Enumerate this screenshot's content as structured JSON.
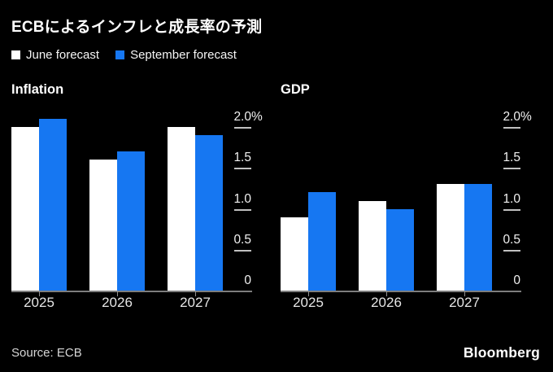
{
  "title": "ECBによるインフレと成長率の予測",
  "legend": {
    "items": [
      {
        "key": "june",
        "label": "June forecast",
        "color": "#ffffff"
      },
      {
        "key": "september",
        "label": "September forecast",
        "color": "#1677f2"
      }
    ]
  },
  "source": "Source: ECB",
  "brand": "Bloomberg",
  "colors": {
    "background": "#000000",
    "june_bar": "#ffffff",
    "september_bar": "#1677f2",
    "baseline": "#7d7d7d",
    "tick_line": "#c0c0c0",
    "axis_text": "#f1f1f1"
  },
  "chart_data": [
    {
      "type": "bar",
      "id": "inflation",
      "title": "Inflation",
      "unit": "%",
      "categories": [
        "2025",
        "2026",
        "2027"
      ],
      "series": [
        {
          "key": "june",
          "name": "June forecast",
          "color": "#ffffff",
          "values": [
            2.0,
            1.6,
            2.0
          ]
        },
        {
          "key": "september",
          "name": "September forecast",
          "color": "#1677f2",
          "values": [
            2.1,
            1.7,
            1.9
          ]
        }
      ],
      "ylim": [
        0,
        2.25
      ],
      "grid": false,
      "legend_position": "top-shared",
      "y_axis": {
        "max": 2.25,
        "side": "right",
        "ticks": [
          {
            "value": 2.0,
            "label": "2.0",
            "suffix": "%"
          },
          {
            "value": 1.5,
            "label": "1.5",
            "suffix": ""
          },
          {
            "value": 1.0,
            "label": "1.0",
            "suffix": ""
          },
          {
            "value": 0.5,
            "label": "0.5",
            "suffix": ""
          },
          {
            "value": 0,
            "label": "0",
            "suffix": ""
          }
        ]
      }
    },
    {
      "type": "bar",
      "id": "gdp",
      "title": "GDP",
      "unit": "%",
      "categories": [
        "2025",
        "2026",
        "2027"
      ],
      "series": [
        {
          "key": "june",
          "name": "June forecast",
          "color": "#ffffff",
          "values": [
            0.9,
            1.1,
            1.3
          ]
        },
        {
          "key": "september",
          "name": "September forecast",
          "color": "#1677f2",
          "values": [
            1.2,
            1.0,
            1.3
          ]
        }
      ],
      "ylim": [
        0,
        2.25
      ],
      "grid": false,
      "legend_position": "top-shared",
      "y_axis": {
        "max": 2.25,
        "side": "right",
        "ticks": [
          {
            "value": 2.0,
            "label": "2.0",
            "suffix": "%"
          },
          {
            "value": 1.5,
            "label": "1.5",
            "suffix": ""
          },
          {
            "value": 1.0,
            "label": "1.0",
            "suffix": ""
          },
          {
            "value": 0.5,
            "label": "0.5",
            "suffix": ""
          },
          {
            "value": 0,
            "label": "0",
            "suffix": ""
          }
        ]
      }
    }
  ]
}
